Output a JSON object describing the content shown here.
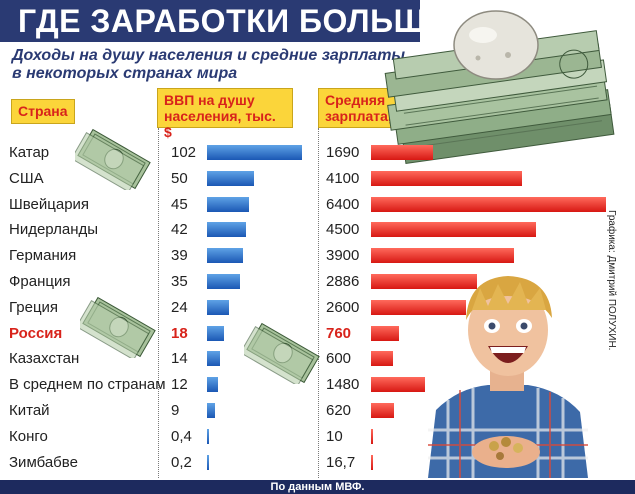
{
  "title": "ГДЕ ЗАРАБОТКИ БОЛЬШЕ",
  "subtitle_line1": "Доходы на душу населения и средние зарплаты",
  "subtitle_line2": "в некоторых странах мира",
  "headers": {
    "country": "Страна",
    "gdp_line1": "ВВП на душу",
    "gdp_line2": "населения, тыс. $",
    "wage_line1": "Средняя",
    "wage_line2": "зарплата, $"
  },
  "footer": "По данным МВФ.",
  "credit": "Графика: Дмитрий ПОЛУХИН.",
  "colors": {
    "title_bg": "#2a3a73",
    "header_bg": "#fbd53a",
    "header_text": "#d8231b",
    "gdp_bar": "#1b58b4",
    "wage_bar": "#d71813",
    "highlight": "#d8231b"
  },
  "icons": [
    "dollar-bill-icon",
    "money-stack-icon",
    "excited-man-illustration"
  ],
  "chart_data": {
    "type": "bar",
    "categories": [
      "Катар",
      "США",
      "Швейцария",
      "Нидерланды",
      "Германия",
      "Франция",
      "Греция",
      "Россия",
      "Казахстан",
      "В среднем по странам",
      "Китай",
      "Конго",
      "Зимбабве"
    ],
    "highlight": "Россия",
    "series": [
      {
        "name": "ВВП на душу населения, тыс. $",
        "values": [
          102,
          50,
          45,
          42,
          39,
          35,
          24,
          18,
          14,
          12,
          9,
          0.4,
          0.2
        ],
        "labels": [
          "102",
          "50",
          "45",
          "42",
          "39",
          "35",
          "24",
          "18",
          "14",
          "12",
          "9",
          "0,4",
          "0,2"
        ]
      },
      {
        "name": "Средняя зарплата, $",
        "values": [
          1690,
          4100,
          6400,
          4500,
          3900,
          2886,
          2600,
          760,
          600,
          1480,
          620,
          10,
          16.7
        ],
        "labels": [
          "1690",
          "4100",
          "6400",
          "4500",
          "3900",
          "2886",
          "2600",
          "760",
          "600",
          "1480",
          "620",
          "10",
          "16,7"
        ]
      }
    ]
  }
}
